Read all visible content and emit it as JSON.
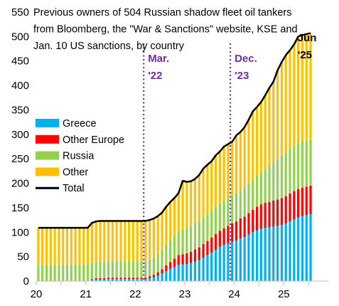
{
  "chart_data": {
    "type": "bar",
    "subtype": "stacked-bar-with-line",
    "title_lines": [
      "Previous owners of 504 Russian shadow fleet oil tankers",
      "from Bloomberg, the \"War & Sanctions\" website, KSE and",
      "Jan. 10 US sanctions, by country"
    ],
    "xlabel": "",
    "ylabel": "",
    "xlim": [
      20,
      25.9
    ],
    "ylim": [
      0,
      550
    ],
    "x_ticks": [
      20,
      21,
      22,
      23,
      24,
      25
    ],
    "x_tick_labels": [
      "20",
      "21",
      "22",
      "23",
      "24",
      "25"
    ],
    "y_ticks": [
      0,
      50,
      100,
      150,
      200,
      250,
      300,
      350,
      400,
      450,
      500,
      550
    ],
    "y_tick_labels": [
      "0",
      "50",
      "100",
      "150",
      "200",
      "250",
      "300",
      "350",
      "400",
      "450",
      "500",
      "550"
    ],
    "grid": false,
    "legend_position": "left-middle",
    "legend": [
      {
        "name": "Greece",
        "color": "#00b0f0",
        "kind": "bar"
      },
      {
        "name": "Other Europe",
        "color": "#ff0000",
        "kind": "bar"
      },
      {
        "name": "Russia",
        "color": "#92d050",
        "kind": "bar"
      },
      {
        "name": "Other",
        "color": "#ffc000",
        "kind": "bar"
      },
      {
        "name": "Total",
        "color": "#000000",
        "kind": "line"
      }
    ],
    "annotations": [
      {
        "label_lines": [
          "Mar.",
          "'22"
        ],
        "x": 22.17,
        "style": "dotted",
        "color": "#7030a0"
      },
      {
        "label_lines": [
          "Dec.",
          "'23"
        ],
        "x": 23.92,
        "style": "dotted",
        "color": "#7030a0"
      },
      {
        "label_lines": [
          "Jun",
          "'25"
        ],
        "x": 25.45,
        "style": "none",
        "color": "#000000"
      }
    ],
    "x": [
      20.0,
      20.083,
      20.167,
      20.25,
      20.333,
      20.417,
      20.5,
      20.583,
      20.667,
      20.75,
      20.833,
      20.917,
      21.0,
      21.083,
      21.167,
      21.25,
      21.333,
      21.417,
      21.5,
      21.583,
      21.667,
      21.75,
      21.833,
      21.917,
      22.0,
      22.083,
      22.167,
      22.25,
      22.333,
      22.417,
      22.5,
      22.583,
      22.667,
      22.75,
      22.833,
      22.917,
      23.0,
      23.083,
      23.167,
      23.25,
      23.333,
      23.417,
      23.5,
      23.583,
      23.667,
      23.75,
      23.833,
      23.917,
      24.0,
      24.083,
      24.167,
      24.25,
      24.333,
      24.417,
      24.5,
      24.583,
      24.667,
      24.75,
      24.833,
      24.917,
      25.0,
      25.083,
      25.167,
      25.25,
      25.333,
      25.417,
      25.5
    ],
    "series": [
      {
        "name": "Greece",
        "color": "#00b0f0",
        "values": [
          0,
          0,
          0,
          0,
          0,
          0,
          0,
          0,
          0,
          0,
          0,
          0,
          0,
          2,
          3,
          3,
          3,
          4,
          4,
          4,
          4,
          4,
          4,
          4,
          4,
          4,
          4,
          6,
          8,
          11,
          15,
          20,
          25,
          29,
          33,
          34,
          35,
          37,
          40,
          43,
          48,
          53,
          58,
          64,
          70,
          74,
          77,
          80,
          83,
          87,
          90,
          95,
          100,
          104,
          107,
          109,
          110,
          112,
          113,
          115,
          118,
          122,
          126,
          130,
          133,
          135,
          137
        ]
      },
      {
        "name": "Other Europe",
        "color": "#ff0000",
        "values": [
          0,
          0,
          0,
          0,
          0,
          0,
          0,
          0,
          0,
          0,
          0,
          0,
          0,
          2,
          3,
          3,
          3,
          3,
          3,
          3,
          3,
          3,
          3,
          3,
          3,
          3,
          3,
          4,
          5,
          7,
          9,
          12,
          14,
          17,
          20,
          21,
          22,
          23,
          25,
          26,
          28,
          29,
          31,
          32,
          33,
          34,
          36,
          38,
          39,
          41,
          42,
          44,
          46,
          48,
          50,
          51,
          52,
          53,
          54,
          55,
          56,
          57,
          58,
          58,
          58,
          58,
          58
        ]
      },
      {
        "name": "Russia",
        "color": "#92d050",
        "values": [
          33,
          33,
          33,
          33,
          33,
          33,
          33,
          33,
          33,
          33,
          33,
          33,
          33,
          33,
          33,
          33,
          33,
          33,
          33,
          33,
          33,
          33,
          33,
          33,
          33,
          33,
          33,
          34,
          35,
          38,
          40,
          42,
          44,
          46,
          48,
          49,
          50,
          51,
          52,
          53,
          54,
          55,
          55,
          56,
          56,
          56,
          57,
          57,
          58,
          58,
          58,
          59,
          60,
          62,
          64,
          68,
          74,
          78,
          82,
          86,
          88,
          90,
          93,
          94,
          94,
          94,
          94
        ]
      },
      {
        "name": "Other",
        "color": "#ffc000",
        "values": [
          76,
          76,
          76,
          76,
          76,
          76,
          76,
          76,
          76,
          76,
          76,
          76,
          76,
          82,
          83,
          84,
          84,
          83,
          83,
          83,
          83,
          83,
          83,
          83,
          83,
          83,
          83,
          81,
          80,
          77,
          76,
          78,
          79,
          78,
          79,
          101,
          96,
          93,
          92,
          95,
          100,
          101,
          101,
          105,
          106,
          111,
          110,
          110,
          118,
          119,
          125,
          132,
          141,
          142,
          145,
          152,
          159,
          165,
          182,
          192,
          200,
          203,
          207,
          218,
          218,
          218,
          218
        ]
      }
    ],
    "total": [
      109,
      109,
      109,
      109,
      109,
      109,
      109,
      109,
      109,
      109,
      109,
      109,
      109,
      119,
      122,
      123,
      123,
      123,
      123,
      123,
      123,
      123,
      123,
      123,
      123,
      123,
      123,
      125,
      128,
      133,
      140,
      152,
      162,
      170,
      180,
      205,
      203,
      204,
      209,
      217,
      230,
      238,
      245,
      257,
      265,
      275,
      280,
      285,
      298,
      305,
      315,
      330,
      347,
      356,
      366,
      380,
      395,
      408,
      431,
      448,
      462,
      472,
      484,
      500,
      503,
      505,
      507
    ]
  }
}
